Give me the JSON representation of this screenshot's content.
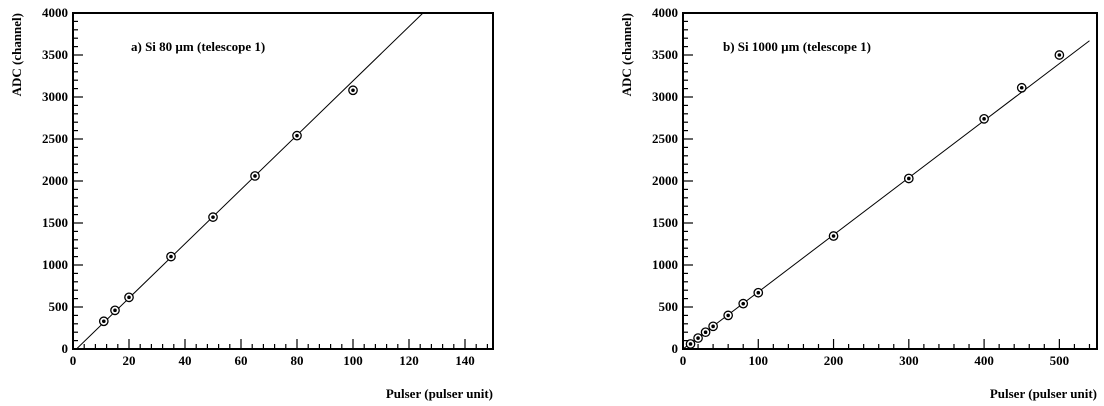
{
  "chart_data": [
    {
      "type": "scatter",
      "title": "a) Si 80 µm (telescope 1)",
      "xlabel": "Pulser (pulser unit)",
      "ylabel": "ADC (channel)",
      "xlim": [
        0,
        150
      ],
      "ylim": [
        0,
        4000
      ],
      "x_ticks": [
        0,
        20,
        40,
        60,
        80,
        100,
        120,
        140
      ],
      "y_ticks": [
        0,
        500,
        1000,
        1500,
        2000,
        2500,
        3000,
        3500,
        4000
      ],
      "grid": false,
      "series": [
        {
          "marker": "open-circle-with-dot",
          "x": [
            11,
            15,
            20,
            35,
            50,
            65,
            80,
            100
          ],
          "y": [
            330,
            460,
            615,
            1100,
            1570,
            2060,
            2540,
            3080
          ]
        }
      ],
      "fit_line": {
        "x": [
          0,
          125
        ],
        "y": [
          -40,
          4000
        ]
      }
    },
    {
      "type": "scatter",
      "title": "b) Si 1000 µm (telescope 1)",
      "xlabel": "Pulser (pulser unit)",
      "ylabel": "ADC (channel)",
      "xlim": [
        0,
        550
      ],
      "ylim": [
        0,
        4000
      ],
      "x_ticks": [
        0,
        100,
        200,
        300,
        400,
        500
      ],
      "y_ticks": [
        0,
        500,
        1000,
        1500,
        2000,
        2500,
        3000,
        3500,
        4000
      ],
      "grid": false,
      "series": [
        {
          "marker": "open-circle-with-dot",
          "x": [
            10,
            20,
            30,
            40,
            60,
            80,
            100,
            200,
            300,
            400,
            450,
            500
          ],
          "y": [
            60,
            130,
            200,
            270,
            400,
            540,
            670,
            1345,
            2030,
            2740,
            3110,
            3500
          ]
        }
      ],
      "fit_line": {
        "x": [
          0,
          540
        ],
        "y": [
          0,
          3670
        ]
      }
    }
  ]
}
